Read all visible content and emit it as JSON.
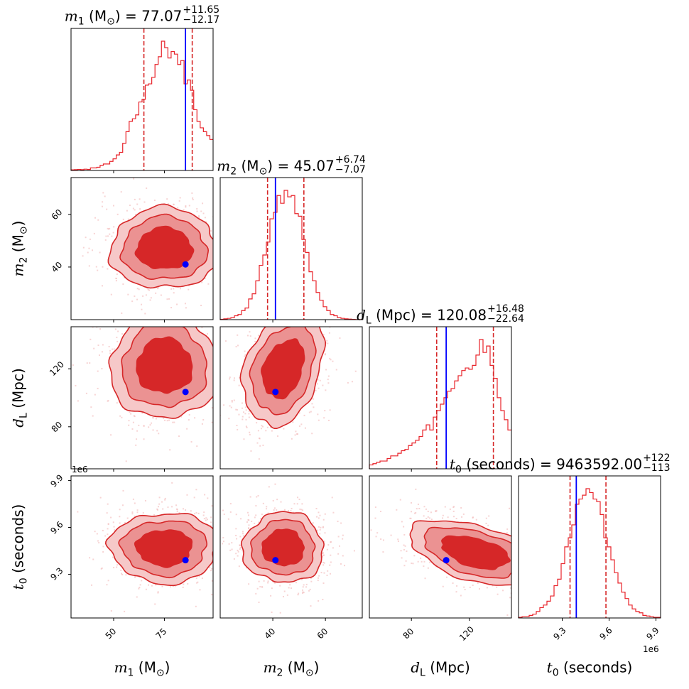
{
  "chart_data": {
    "type": "corner",
    "grid": false,
    "colors": {
      "posterior": "#d62728",
      "hist": "#e8232a",
      "truth": "#0000ff",
      "inner": "#d62728",
      "middle": "#eb9292",
      "outer": "#f6c8c8",
      "points": "#f2b8b8"
    },
    "offset_text": "1e6",
    "params": [
      {
        "symbol": "m",
        "sub": "1",
        "unit": "M",
        "unit_sub": "⊙",
        "median": "77.07",
        "err_plus": "+11.65",
        "err_minus": "−12.17",
        "range": [
          29,
          99
        ],
        "ticks": [
          50,
          75
        ],
        "tick_labels": [
          "50",
          "75"
        ],
        "truth": 85.4,
        "quantiles": [
          64.9,
          88.72
        ],
        "hist": [
          0.005,
          0.006,
          0.008,
          0.006,
          0.01,
          0.008,
          0.02,
          0.02,
          0.025,
          0.04,
          0.05,
          0.05,
          0.07,
          0.09,
          0.12,
          0.14,
          0.21,
          0.3,
          0.38,
          0.4,
          0.43,
          0.53,
          0.55,
          0.66,
          0.67,
          0.72,
          0.82,
          0.88,
          1.0,
          0.95,
          0.87,
          0.92,
          0.9,
          0.82,
          0.85,
          0.67,
          0.7,
          0.62,
          0.47,
          0.38,
          0.33,
          0.3,
          0.27,
          0.24
        ]
      },
      {
        "symbol": "m",
        "sub": "2",
        "unit": "M",
        "unit_sub": "⊙",
        "median": "45.07",
        "err_plus": "+6.74",
        "err_minus": "−7.07",
        "range": [
          20,
          74
        ],
        "ticks": [
          40,
          60
        ],
        "tick_labels": [
          "40",
          "60"
        ],
        "truth": 41.0,
        "quantiles": [
          38.0,
          51.81
        ],
        "hist": [
          0.003,
          0.006,
          0.01,
          0.015,
          0.03,
          0.04,
          0.07,
          0.09,
          0.16,
          0.2,
          0.3,
          0.42,
          0.5,
          0.6,
          0.78,
          0.83,
          0.96,
          0.9,
          1.0,
          0.95,
          0.96,
          0.82,
          0.8,
          0.62,
          0.52,
          0.37,
          0.3,
          0.21,
          0.15,
          0.1,
          0.07,
          0.04,
          0.03,
          0.015,
          0.01,
          0.006,
          0.004,
          0.002,
          0.001,
          0.001
        ]
      },
      {
        "symbol": "d",
        "sub": "L",
        "unit": "Mpc",
        "unit_sub": "",
        "median": "120.08",
        "err_plus": "+16.48",
        "err_minus": "−22.64",
        "range": [
          51,
          149
        ],
        "ticks": [
          80,
          120
        ],
        "tick_labels": [
          "80",
          "120"
        ],
        "truth": 104,
        "quantiles": [
          97.44,
          136.56
        ],
        "hist": [
          0.03,
          0.04,
          0.05,
          0.06,
          0.06,
          0.08,
          0.1,
          0.1,
          0.12,
          0.14,
          0.15,
          0.18,
          0.2,
          0.22,
          0.25,
          0.3,
          0.34,
          0.3,
          0.4,
          0.45,
          0.5,
          0.55,
          0.6,
          0.62,
          0.68,
          0.72,
          0.76,
          0.78,
          0.77,
          0.8,
          0.88,
          1.0,
          0.9,
          0.95,
          0.8,
          0.7,
          0.55,
          0.45,
          0.38,
          0.3
        ]
      },
      {
        "symbol": "t",
        "sub": "0",
        "unit": "seconds",
        "unit_sub": "",
        "median": "9463592.00",
        "err_plus": "+122",
        "err_minus": "−113",
        "range": [
          9.02,
          9.93
        ],
        "ticks": [
          9.3,
          9.6,
          9.9
        ],
        "tick_labels": [
          "9.3",
          "9.6",
          "9.9"
        ],
        "truth": 9.39,
        "quantiles": [
          9.35,
          9.58
        ],
        "hist": [
          0.005,
          0.01,
          0.01,
          0.02,
          0.03,
          0.05,
          0.08,
          0.1,
          0.13,
          0.17,
          0.25,
          0.3,
          0.42,
          0.55,
          0.62,
          0.72,
          0.88,
          0.92,
          0.95,
          1.0,
          0.97,
          0.92,
          0.9,
          0.8,
          0.62,
          0.55,
          0.45,
          0.35,
          0.27,
          0.2,
          0.15,
          0.1,
          0.07,
          0.05,
          0.04,
          0.02,
          0.015,
          0.01,
          0.005,
          0.005
        ]
      }
    ],
    "pairs": [
      {
        "x": 0,
        "y": 1,
        "center": [
          75,
          47
        ],
        "sigma": [
          13,
          7.5
        ],
        "corr": 0.0
      },
      {
        "x": 0,
        "y": 2,
        "center": [
          75,
          122
        ],
        "sigma": [
          13,
          18
        ],
        "corr": 0.0
      },
      {
        "x": 1,
        "y": 2,
        "center": [
          44,
          120
        ],
        "sigma": [
          7.5,
          19
        ],
        "corr": 0.3
      },
      {
        "x": 0,
        "y": 3,
        "center": [
          75,
          9.47
        ],
        "sigma": [
          13,
          0.11
        ],
        "corr": 0.0
      },
      {
        "x": 1,
        "y": 3,
        "center": [
          44,
          9.47
        ],
        "sigma": [
          7.5,
          0.11
        ],
        "corr": 0.0
      },
      {
        "x": 2,
        "y": 3,
        "center": [
          124,
          9.44
        ],
        "sigma": [
          22,
          0.1
        ],
        "corr": -0.45
      }
    ]
  }
}
